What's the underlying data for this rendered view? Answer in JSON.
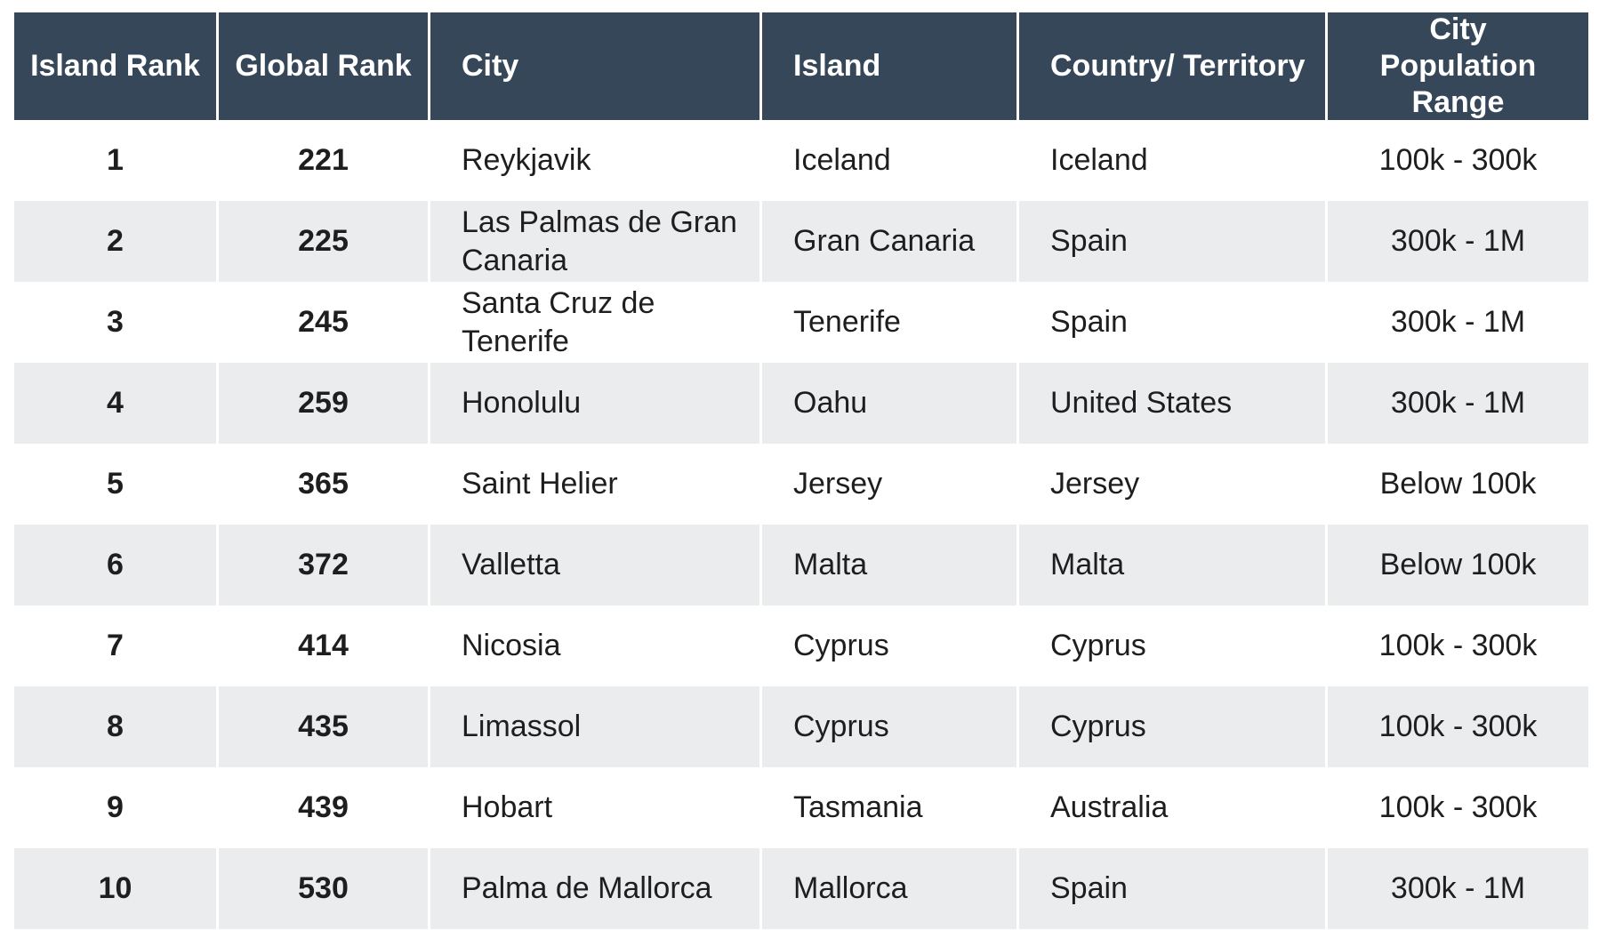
{
  "table": {
    "header": [
      "Island Rank",
      "Global Rank",
      "City",
      "Island",
      "Country/ Territory",
      "City Population Range"
    ],
    "rows": [
      [
        "1",
        "221",
        "Reykjavik",
        "Iceland",
        "Iceland",
        "100k - 300k"
      ],
      [
        "2",
        "225",
        "Las Palmas de Gran Canaria",
        "Gran Canaria",
        "Spain",
        "300k - 1M"
      ],
      [
        "3",
        "245",
        "Santa Cruz de Tenerife",
        "Tenerife",
        "Spain",
        "300k - 1M"
      ],
      [
        "4",
        "259",
        "Honolulu",
        "Oahu",
        "United States",
        "300k - 1M"
      ],
      [
        "5",
        "365",
        "Saint Helier",
        "Jersey",
        "Jersey",
        "Below 100k"
      ],
      [
        "6",
        "372",
        "Valletta",
        "Malta",
        "Malta",
        "Below 100k"
      ],
      [
        "7",
        "414",
        "Nicosia",
        "Cyprus",
        "Cyprus",
        "100k - 300k"
      ],
      [
        "8",
        "435",
        "Limassol",
        "Cyprus",
        "Cyprus",
        "100k - 300k"
      ],
      [
        "9",
        "439",
        "Hobart",
        "Tasmania",
        "Australia",
        "100k - 300k"
      ],
      [
        "10",
        "530",
        "Palma de Mallorca",
        "Mallorca",
        "Spain",
        "300k - 1M"
      ]
    ]
  }
}
